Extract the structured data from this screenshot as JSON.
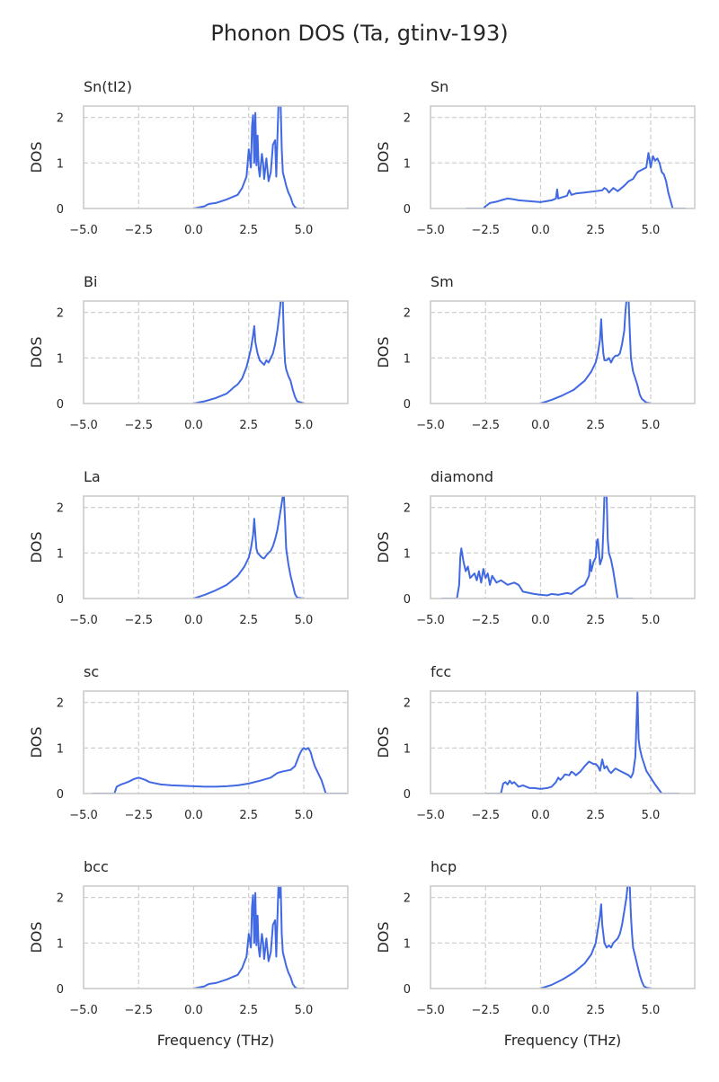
{
  "figure": {
    "title": "Phonon DOS (Ta, gtinv-193)",
    "xlabel": "Frequency (THz)",
    "ylabel": "DOS",
    "line_color": "#4169e1",
    "grid_color": "#cccccc",
    "spine_color": "#cccccc"
  },
  "chart_data": [
    {
      "type": "line",
      "title": "Sn(tI2)",
      "xlabel": "",
      "ylabel": "DOS",
      "xlim": [
        -5,
        7
      ],
      "ylim": [
        0,
        2.25
      ],
      "xticks": [
        "−5.0",
        "−2.5",
        "0.0",
        "2.5",
        "5.0"
      ],
      "yticks": [
        "0",
        "1",
        "2"
      ],
      "grid": true,
      "series": [
        {
          "x": [
            0,
            0.3,
            0.5,
            0.6,
            0.7,
            1.0,
            1.5,
            1.8,
            2.0,
            2.2,
            2.4,
            2.5,
            2.6,
            2.65,
            2.7,
            2.75,
            2.8,
            2.85,
            2.9,
            2.95,
            3.0,
            3.1,
            3.15,
            3.2,
            3.3,
            3.4,
            3.5,
            3.6,
            3.7,
            3.75,
            3.8,
            3.85,
            3.9,
            3.95,
            4.0,
            4.05,
            4.1,
            4.15,
            4.2,
            4.3,
            4.4,
            4.5,
            4.6,
            4.7,
            5.0
          ],
          "y": [
            0,
            0.03,
            0.05,
            0.08,
            0.1,
            0.12,
            0.2,
            0.26,
            0.3,
            0.45,
            0.7,
            1.3,
            0.9,
            1.8,
            2.05,
            1.0,
            2.1,
            0.95,
            1.6,
            0.9,
            0.7,
            1.2,
            1.0,
            0.65,
            1.1,
            0.6,
            0.8,
            1.4,
            1.5,
            0.7,
            1.5,
            2.25,
            2.25,
            2.25,
            1.3,
            0.8,
            0.7,
            0.6,
            0.5,
            0.35,
            0.25,
            0.1,
            0.03,
            0.0,
            0.0
          ]
        }
      ]
    },
    {
      "type": "line",
      "title": "Sn",
      "xlabel": "",
      "ylabel": "DOS",
      "xlim": [
        -5,
        7
      ],
      "ylim": [
        0,
        2.25
      ],
      "xticks": [
        "−5.0",
        "−2.5",
        "0.0",
        "2.5",
        "5.0"
      ],
      "yticks": [
        "0",
        "1",
        "2"
      ],
      "grid": true,
      "series": [
        {
          "x": [
            -3.4,
            -2.6,
            -2.5,
            -2.3,
            -2.0,
            -1.8,
            -1.5,
            -1.2,
            -1.0,
            -0.5,
            0.0,
            0.5,
            0.7,
            0.75,
            0.8,
            1.0,
            1.2,
            1.3,
            1.4,
            1.6,
            2.0,
            2.5,
            2.8,
            2.9,
            3.0,
            3.1,
            3.3,
            3.5,
            3.8,
            4.0,
            4.2,
            4.4,
            4.6,
            4.8,
            4.9,
            5.0,
            5.1,
            5.2,
            5.3,
            5.4,
            5.5,
            5.6,
            5.7,
            5.8,
            6.0,
            6.6
          ],
          "y": [
            0,
            0,
            0.05,
            0.12,
            0.15,
            0.18,
            0.22,
            0.2,
            0.18,
            0.16,
            0.14,
            0.18,
            0.22,
            0.42,
            0.22,
            0.25,
            0.28,
            0.4,
            0.3,
            0.33,
            0.35,
            0.38,
            0.4,
            0.45,
            0.42,
            0.35,
            0.45,
            0.38,
            0.5,
            0.6,
            0.65,
            0.8,
            0.85,
            0.9,
            1.22,
            0.9,
            1.15,
            1.05,
            1.1,
            1.0,
            0.8,
            0.75,
            0.6,
            0.35,
            0.0,
            0.0
          ]
        }
      ]
    },
    {
      "type": "line",
      "title": "Bi",
      "xlabel": "",
      "ylabel": "DOS",
      "xlim": [
        -5,
        7
      ],
      "ylim": [
        0,
        2.25
      ],
      "xticks": [
        "−5.0",
        "−2.5",
        "0.0",
        "2.5",
        "5.0"
      ],
      "yticks": [
        "0",
        "1",
        "2"
      ],
      "grid": true,
      "series": [
        {
          "x": [
            0,
            0.5,
            1.0,
            1.5,
            1.7,
            1.8,
            2.0,
            2.2,
            2.4,
            2.5,
            2.6,
            2.7,
            2.75,
            2.8,
            2.9,
            3.0,
            3.1,
            3.2,
            3.3,
            3.4,
            3.5,
            3.6,
            3.7,
            3.8,
            3.9,
            3.95,
            4.0,
            4.05,
            4.1,
            4.15,
            4.2,
            4.3,
            4.4,
            4.5,
            4.6,
            4.7,
            5.0
          ],
          "y": [
            0,
            0.05,
            0.12,
            0.22,
            0.3,
            0.35,
            0.42,
            0.55,
            0.8,
            1.0,
            1.2,
            1.5,
            1.7,
            1.35,
            1.1,
            0.95,
            0.9,
            0.85,
            0.95,
            0.9,
            1.0,
            1.1,
            1.3,
            1.6,
            2.0,
            2.25,
            2.25,
            2.25,
            1.4,
            0.9,
            0.75,
            0.6,
            0.5,
            0.3,
            0.15,
            0.05,
            0.0
          ]
        }
      ]
    },
    {
      "type": "line",
      "title": "Sm",
      "xlabel": "",
      "ylabel": "DOS",
      "xlim": [
        -5,
        7
      ],
      "ylim": [
        0,
        2.25
      ],
      "xticks": [
        "−5.0",
        "−2.5",
        "0.0",
        "2.5",
        "5.0"
      ],
      "yticks": [
        "0",
        "1",
        "2"
      ],
      "grid": true,
      "series": [
        {
          "x": [
            0,
            0.5,
            1.0,
            1.5,
            2.0,
            2.3,
            2.5,
            2.6,
            2.7,
            2.75,
            2.8,
            2.85,
            2.9,
            3.0,
            3.1,
            3.2,
            3.3,
            3.4,
            3.5,
            3.6,
            3.7,
            3.8,
            3.85,
            3.9,
            3.95,
            4.0,
            4.05,
            4.1,
            4.2,
            4.3,
            4.4,
            4.5,
            4.6,
            4.8,
            5.0
          ],
          "y": [
            0,
            0.08,
            0.18,
            0.3,
            0.5,
            0.7,
            0.9,
            1.1,
            1.4,
            1.85,
            1.4,
            1.1,
            0.95,
            0.95,
            1.0,
            0.9,
            1.0,
            1.05,
            1.05,
            1.1,
            1.3,
            1.6,
            2.0,
            2.25,
            2.25,
            2.25,
            1.6,
            1.0,
            0.7,
            0.55,
            0.4,
            0.2,
            0.1,
            0.02,
            0.0
          ]
        }
      ]
    },
    {
      "type": "line",
      "title": "La",
      "xlabel": "",
      "ylabel": "DOS",
      "xlim": [
        -5,
        7
      ],
      "ylim": [
        0,
        2.25
      ],
      "xticks": [
        "−5.0",
        "−2.5",
        "0.0",
        "2.5",
        "5.0"
      ],
      "yticks": [
        "0",
        "1",
        "2"
      ],
      "grid": true,
      "series": [
        {
          "x": [
            0,
            0.5,
            1.0,
            1.5,
            2.0,
            2.3,
            2.5,
            2.6,
            2.7,
            2.75,
            2.8,
            2.85,
            2.9,
            3.0,
            3.1,
            3.2,
            3.3,
            3.4,
            3.5,
            3.6,
            3.7,
            3.8,
            3.9,
            4.0,
            4.05,
            4.1,
            4.15,
            4.2,
            4.3,
            4.4,
            4.5,
            4.6,
            4.7,
            5.0
          ],
          "y": [
            0,
            0.08,
            0.18,
            0.3,
            0.5,
            0.7,
            0.9,
            1.1,
            1.4,
            1.75,
            1.4,
            1.1,
            1.0,
            0.95,
            0.9,
            0.88,
            0.95,
            1.0,
            1.05,
            1.15,
            1.3,
            1.5,
            1.8,
            2.1,
            2.25,
            2.25,
            1.7,
            1.1,
            0.75,
            0.5,
            0.3,
            0.1,
            0.02,
            0.0
          ]
        }
      ]
    },
    {
      "type": "line",
      "title": "diamond",
      "xlabel": "",
      "ylabel": "DOS",
      "xlim": [
        -5,
        7
      ],
      "ylim": [
        0,
        2.25
      ],
      "xticks": [
        "−5.0",
        "−2.5",
        "0.0",
        "2.5",
        "5.0"
      ],
      "yticks": [
        "0",
        "1",
        "2"
      ],
      "grid": true,
      "series": [
        {
          "x": [
            -4.5,
            -3.8,
            -3.7,
            -3.65,
            -3.6,
            -3.5,
            -3.4,
            -3.3,
            -3.2,
            -3.0,
            -2.9,
            -2.8,
            -2.7,
            -2.6,
            -2.5,
            -2.4,
            -2.3,
            -2.2,
            -2.0,
            -1.8,
            -1.5,
            -1.2,
            -1.0,
            -0.8,
            -0.5,
            -0.3,
            0.0,
            0.3,
            0.5,
            0.8,
            1.0,
            1.2,
            1.4,
            1.6,
            1.8,
            2.0,
            2.1,
            2.2,
            2.25,
            2.3,
            2.4,
            2.5,
            2.55,
            2.6,
            2.7,
            2.8,
            2.85,
            2.9,
            2.95,
            3.0,
            3.05,
            3.1,
            3.2,
            3.3,
            3.4,
            3.5,
            4.2
          ],
          "y": [
            0,
            0,
            0.3,
            0.9,
            1.1,
            0.8,
            0.6,
            0.7,
            0.45,
            0.55,
            0.4,
            0.6,
            0.35,
            0.65,
            0.45,
            0.55,
            0.3,
            0.5,
            0.35,
            0.4,
            0.3,
            0.35,
            0.3,
            0.15,
            0.12,
            0.1,
            0.08,
            0.07,
            0.1,
            0.08,
            0.1,
            0.12,
            0.1,
            0.18,
            0.25,
            0.3,
            0.4,
            0.5,
            0.85,
            0.6,
            0.8,
            0.9,
            1.25,
            1.3,
            0.75,
            0.9,
            1.5,
            2.25,
            2.25,
            2.25,
            1.3,
            1.0,
            0.85,
            0.6,
            0.3,
            0.0,
            0.0
          ]
        }
      ]
    },
    {
      "type": "line",
      "title": "sc",
      "xlabel": "",
      "ylabel": "DOS",
      "xlim": [
        -5,
        7
      ],
      "ylim": [
        0,
        2.25
      ],
      "xticks": [
        "−5.0",
        "−2.5",
        "0.0",
        "2.5",
        "5.0"
      ],
      "yticks": [
        "0",
        "1",
        "2"
      ],
      "grid": true,
      "series": [
        {
          "x": [
            -4.6,
            -3.6,
            -3.5,
            -3.3,
            -3.0,
            -2.7,
            -2.5,
            -2.2,
            -2.0,
            -1.5,
            -1.0,
            -0.5,
            0.0,
            0.5,
            1.0,
            1.5,
            2.0,
            2.5,
            3.0,
            3.5,
            3.8,
            4.0,
            4.2,
            4.4,
            4.6,
            4.8,
            4.9,
            5.0,
            5.1,
            5.2,
            5.3,
            5.4,
            5.5,
            5.6,
            5.7,
            5.8,
            5.9,
            6.0,
            7.0
          ],
          "y": [
            0,
            0,
            0.15,
            0.2,
            0.25,
            0.32,
            0.35,
            0.3,
            0.25,
            0.2,
            0.18,
            0.17,
            0.16,
            0.15,
            0.15,
            0.16,
            0.18,
            0.22,
            0.28,
            0.35,
            0.45,
            0.48,
            0.5,
            0.52,
            0.6,
            0.85,
            0.95,
            1.0,
            0.97,
            1.0,
            0.92,
            0.75,
            0.6,
            0.5,
            0.4,
            0.3,
            0.15,
            0.0,
            0.0
          ]
        }
      ]
    },
    {
      "type": "line",
      "title": "fcc",
      "xlabel": "",
      "ylabel": "DOS",
      "xlim": [
        -5,
        7
      ],
      "ylim": [
        0,
        2.25
      ],
      "xticks": [
        "−5.0",
        "−2.5",
        "0.0",
        "2.5",
        "5.0"
      ],
      "yticks": [
        "0",
        "1",
        "2"
      ],
      "grid": true,
      "series": [
        {
          "x": [
            -2.5,
            -1.8,
            -1.7,
            -1.6,
            -1.5,
            -1.4,
            -1.3,
            -1.2,
            -1.0,
            -0.8,
            -0.5,
            -0.3,
            0.0,
            0.3,
            0.5,
            0.7,
            0.8,
            0.9,
            1.0,
            1.1,
            1.3,
            1.4,
            1.5,
            1.6,
            1.8,
            2.0,
            2.2,
            2.4,
            2.5,
            2.6,
            2.7,
            2.8,
            2.9,
            3.0,
            3.1,
            3.2,
            3.4,
            3.6,
            3.8,
            4.0,
            4.1,
            4.2,
            4.3,
            4.35,
            4.4,
            4.45,
            4.5,
            4.6,
            4.8,
            5.0,
            5.2,
            5.5,
            6.3
          ],
          "y": [
            0,
            0,
            0.22,
            0.25,
            0.2,
            0.28,
            0.22,
            0.25,
            0.15,
            0.18,
            0.12,
            0.12,
            0.1,
            0.12,
            0.15,
            0.25,
            0.35,
            0.3,
            0.35,
            0.42,
            0.4,
            0.48,
            0.45,
            0.4,
            0.48,
            0.6,
            0.7,
            0.65,
            0.65,
            0.6,
            0.5,
            0.75,
            0.55,
            0.6,
            0.5,
            0.45,
            0.55,
            0.5,
            0.45,
            0.4,
            0.35,
            0.45,
            0.8,
            1.5,
            2.25,
            1.2,
            1.0,
            0.8,
            0.5,
            0.35,
            0.2,
            0.0,
            0.0
          ]
        }
      ]
    },
    {
      "type": "line",
      "title": "bcc",
      "xlabel": "Frequency (THz)",
      "ylabel": "DOS",
      "xlim": [
        -5,
        7
      ],
      "ylim": [
        0,
        2.25
      ],
      "xticks": [
        "−5.0",
        "−2.5",
        "0.0",
        "2.5",
        "5.0"
      ],
      "yticks": [
        "0",
        "1",
        "2"
      ],
      "grid": true,
      "series": [
        {
          "x": [
            0,
            0.3,
            0.5,
            0.6,
            0.7,
            1.0,
            1.5,
            1.8,
            2.0,
            2.2,
            2.4,
            2.5,
            2.6,
            2.65,
            2.7,
            2.75,
            2.8,
            2.85,
            2.9,
            2.95,
            3.0,
            3.1,
            3.15,
            3.2,
            3.3,
            3.4,
            3.5,
            3.6,
            3.7,
            3.75,
            3.8,
            3.85,
            3.9,
            3.95,
            4.0,
            4.05,
            4.1,
            4.15,
            4.2,
            4.3,
            4.4,
            4.5,
            4.6,
            4.7,
            5.0
          ],
          "y": [
            0,
            0.03,
            0.05,
            0.08,
            0.1,
            0.12,
            0.2,
            0.26,
            0.3,
            0.45,
            0.7,
            1.2,
            0.9,
            1.8,
            2.05,
            1.0,
            2.1,
            0.95,
            1.6,
            0.9,
            0.7,
            1.2,
            1.0,
            0.65,
            1.1,
            0.6,
            0.8,
            1.4,
            1.5,
            0.7,
            1.5,
            2.25,
            2.0,
            2.25,
            1.2,
            0.8,
            0.7,
            0.6,
            0.5,
            0.35,
            0.25,
            0.1,
            0.03,
            0.0,
            0.0
          ]
        }
      ]
    },
    {
      "type": "line",
      "title": "hcp",
      "xlabel": "Frequency (THz)",
      "ylabel": "DOS",
      "xlim": [
        -5,
        7
      ],
      "ylim": [
        0,
        2.25
      ],
      "xticks": [
        "−5.0",
        "−2.5",
        "0.0",
        "2.5",
        "5.0"
      ],
      "yticks": [
        "0",
        "1",
        "2"
      ],
      "grid": true,
      "series": [
        {
          "x": [
            0,
            0.5,
            1.0,
            1.5,
            2.0,
            2.3,
            2.5,
            2.6,
            2.7,
            2.75,
            2.8,
            2.9,
            3.0,
            3.1,
            3.2,
            3.3,
            3.4,
            3.5,
            3.6,
            3.7,
            3.8,
            3.9,
            3.95,
            4.0,
            4.05,
            4.1,
            4.15,
            4.2,
            4.3,
            4.4,
            4.5,
            4.6,
            4.7,
            4.8,
            5.0
          ],
          "y": [
            0,
            0.08,
            0.2,
            0.35,
            0.55,
            0.75,
            1.0,
            1.3,
            1.6,
            1.85,
            1.4,
            1.0,
            0.9,
            0.95,
            0.9,
            1.0,
            1.05,
            1.1,
            1.2,
            1.4,
            1.7,
            2.0,
            2.25,
            2.25,
            2.25,
            1.6,
            1.2,
            0.9,
            0.7,
            0.5,
            0.3,
            0.15,
            0.05,
            0.02,
            0.0
          ]
        }
      ]
    }
  ]
}
